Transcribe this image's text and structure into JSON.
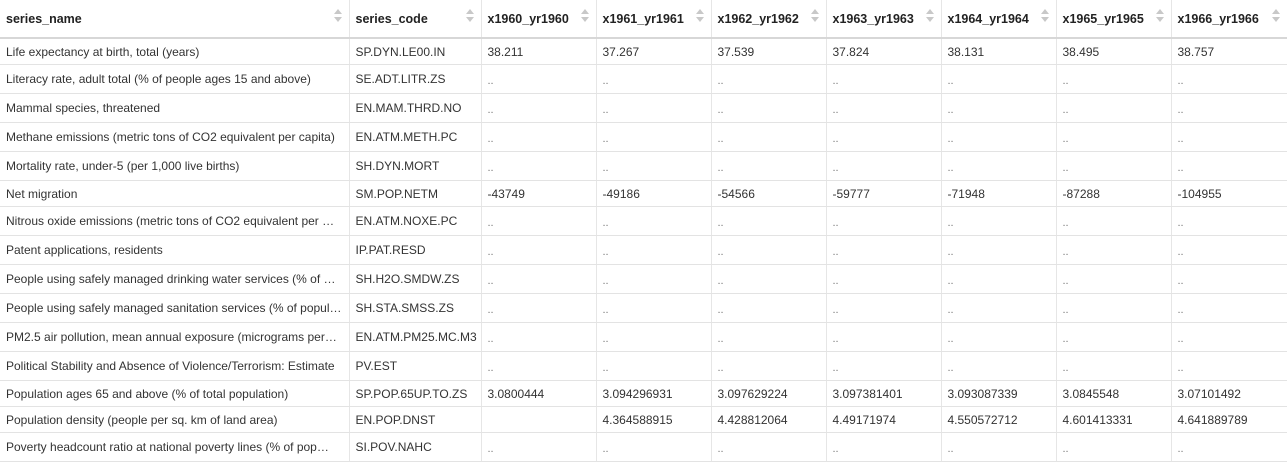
{
  "columns": [
    {
      "label": "series_name"
    },
    {
      "label": "series_code"
    },
    {
      "label": "x1960_yr1960"
    },
    {
      "label": "x1961_yr1961"
    },
    {
      "label": "x1962_yr1962"
    },
    {
      "label": "x1963_yr1963"
    },
    {
      "label": "x1964_yr1964"
    },
    {
      "label": "x1965_yr1965"
    },
    {
      "label": "x1966_yr1966"
    }
  ],
  "rows": [
    [
      "Life expectancy at birth, total (years)",
      "SP.DYN.LE00.IN",
      "38.211",
      "37.267",
      "37.539",
      "37.824",
      "38.131",
      "38.495",
      "38.757"
    ],
    [
      "Literacy rate, adult total (% of people ages 15 and above)",
      "SE.ADT.LITR.ZS",
      "..",
      "..",
      "..",
      "..",
      "..",
      "..",
      ".."
    ],
    [
      "Mammal species, threatened",
      "EN.MAM.THRD.NO",
      "..",
      "..",
      "..",
      "..",
      "..",
      "..",
      ".."
    ],
    [
      "Methane emissions (metric tons of CO2 equivalent per capita)",
      "EN.ATM.METH.PC",
      "..",
      "..",
      "..",
      "..",
      "..",
      "..",
      ".."
    ],
    [
      "Mortality rate, under-5 (per 1,000 live births)",
      "SH.DYN.MORT",
      "..",
      "..",
      "..",
      "..",
      "..",
      "..",
      ".."
    ],
    [
      "Net migration",
      "SM.POP.NETM",
      "-43749",
      "-49186",
      "-54566",
      "-59777",
      "-71948",
      "-87288",
      "-104955"
    ],
    [
      "Nitrous oxide emissions (metric tons of CO2 equivalent per …",
      "EN.ATM.NOXE.PC",
      "..",
      "..",
      "..",
      "..",
      "..",
      "..",
      ".."
    ],
    [
      "Patent applications, residents",
      "IP.PAT.RESD",
      "..",
      "..",
      "..",
      "..",
      "..",
      "..",
      ".."
    ],
    [
      "People using safely managed drinking water services (% of …",
      "SH.H2O.SMDW.ZS",
      "..",
      "..",
      "..",
      "..",
      "..",
      "..",
      ".."
    ],
    [
      "People using safely managed sanitation services (% of popul…",
      "SH.STA.SMSS.ZS",
      "..",
      "..",
      "..",
      "..",
      "..",
      "..",
      ".."
    ],
    [
      "PM2.5 air pollution, mean annual exposure (micrograms per…",
      "EN.ATM.PM25.MC.M3",
      "..",
      "..",
      "..",
      "..",
      "..",
      "..",
      ".."
    ],
    [
      "Political Stability and Absence of Violence/Terrorism: Estimate",
      "PV.EST",
      "..",
      "..",
      "..",
      "..",
      "..",
      "..",
      ".."
    ],
    [
      "Population ages 65 and above (% of total population)",
      "SP.POP.65UP.TO.ZS",
      "3.0800444",
      "3.094296931",
      "3.097629224",
      "3.097381401",
      "3.093087339",
      "3.0845548",
      "3.07101492"
    ],
    [
      "Population density (people per sq. km of land area)",
      "EN.POP.DNST",
      "",
      "4.364588915",
      "4.428812064",
      "4.49171974",
      "4.550572712",
      "4.601413331",
      "4.641889789"
    ],
    [
      "Poverty headcount ratio at national poverty lines (% of pop…",
      "SI.POV.NAHC",
      "..",
      "..",
      "..",
      "..",
      "..",
      "..",
      ".."
    ]
  ]
}
